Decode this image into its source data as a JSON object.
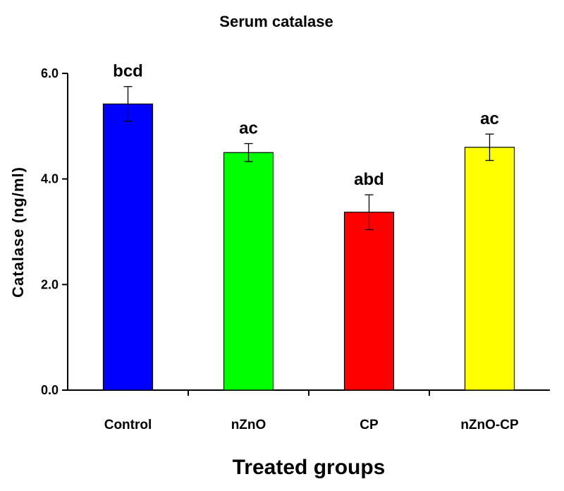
{
  "chart_data": {
    "type": "bar",
    "title": "Serum catalase",
    "xlabel": "Treated groups",
    "ylabel": "Catalase (ng/ml)",
    "ylim": [
      0,
      6
    ],
    "yticks": [
      "0.0",
      "2.0",
      "4.0",
      "6.0"
    ],
    "grid": false,
    "categories": [
      "Control",
      "nZnO",
      "CP",
      "nZnO-CP"
    ],
    "values": [
      5.42,
      4.5,
      3.37,
      4.6
    ],
    "errors": [
      0.33,
      0.17,
      0.33,
      0.25
    ],
    "annotations": [
      "bcd",
      "ac",
      "abd",
      "ac"
    ],
    "colors": [
      "#0000ff",
      "#00ff00",
      "#ff0000",
      "#ffff00"
    ]
  }
}
